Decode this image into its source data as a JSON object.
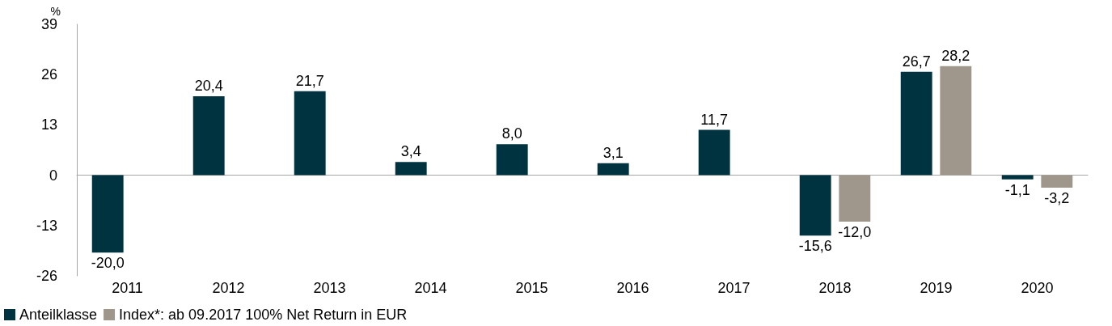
{
  "chart_data": {
    "type": "bar",
    "ylabel": "%",
    "categories": [
      "2011",
      "2012",
      "2013",
      "2014",
      "2015",
      "2016",
      "2017",
      "2018",
      "2019",
      "2020"
    ],
    "series": [
      {
        "name": "Anteilklasse",
        "color": "#003340",
        "values": [
          -20.0,
          20.4,
          21.7,
          3.4,
          8.0,
          3.1,
          11.7,
          -15.6,
          26.7,
          -1.1
        ],
        "value_labels": [
          "-20,0",
          "20,4",
          "21,7",
          "3,4",
          "8,0",
          "3,1",
          "11,7",
          "-15,6",
          "26,7",
          "-1,1"
        ]
      },
      {
        "name": "Index*: ab 09.2017 100% Net Return in EUR",
        "color": "#a0978c",
        "values": [
          null,
          null,
          null,
          null,
          null,
          null,
          null,
          -12.0,
          28.2,
          -3.2
        ],
        "value_labels": [
          null,
          null,
          null,
          null,
          null,
          null,
          null,
          "-12,0",
          "28,2",
          "-3,2"
        ]
      }
    ],
    "ylim": [
      -26,
      39
    ],
    "yticks": [
      -26,
      -13,
      0,
      13,
      26,
      39
    ],
    "legend": "bottom left"
  }
}
